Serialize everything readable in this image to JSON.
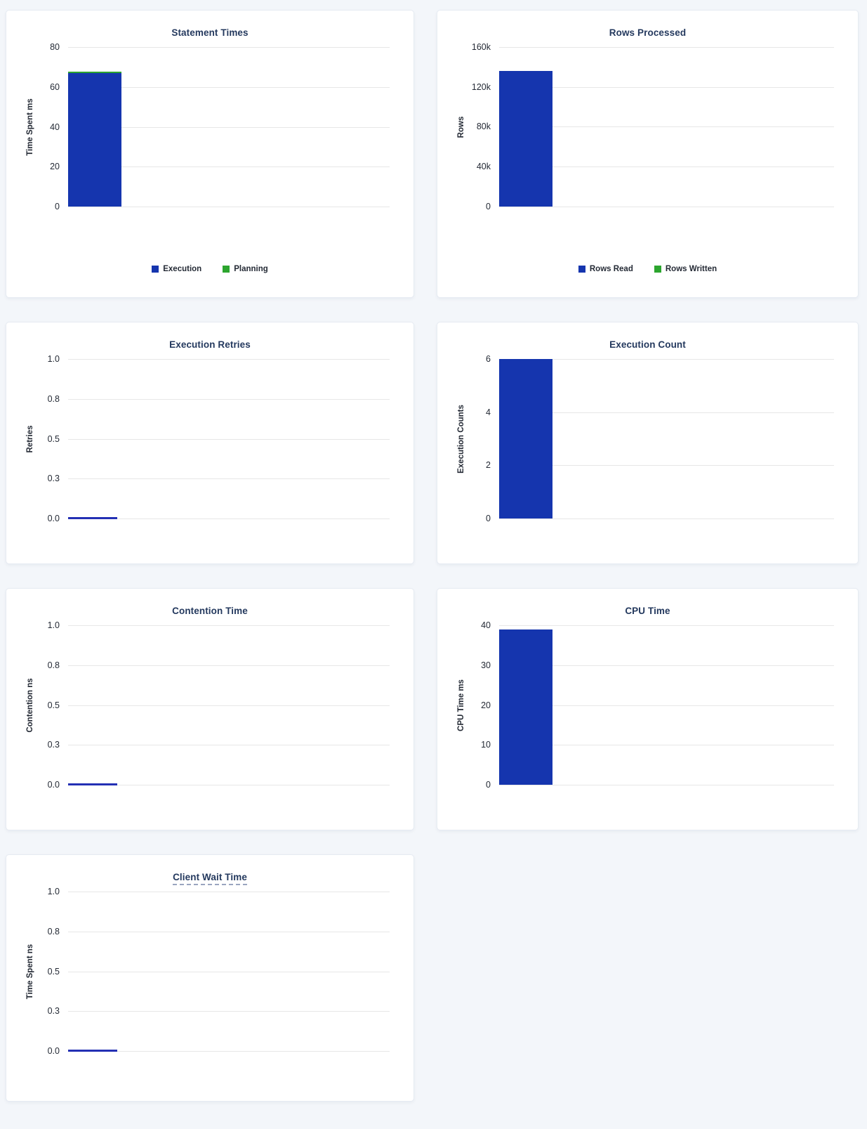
{
  "page": {
    "background": "#F3F6FA",
    "card_background": "#FFFFFF",
    "card_border": "#E6EBF2"
  },
  "colors": {
    "bar_blue": "#1535AE",
    "bar_green": "#2CA52E",
    "zero_bar_blue": "#2430B4",
    "title_navy": "#24395E",
    "tick_text": "#242A35",
    "gridline": "#E7E7E7",
    "tooltip_underline": "#9AA5BF"
  },
  "chart_data": [
    {
      "type": "bar",
      "title": "Statement Times",
      "title_tooltip_underline": false,
      "ylabel": "Time Spent ms",
      "ylim": [
        0,
        80
      ],
      "grid": "on",
      "yticks": [
        {
          "value": 0,
          "label": "0"
        },
        {
          "value": 20,
          "label": "20"
        },
        {
          "value": 40,
          "label": "40"
        },
        {
          "value": 60,
          "label": "60"
        },
        {
          "value": 80,
          "label": "80"
        }
      ],
      "series": [
        {
          "name": "Execution",
          "color": "#1535AE",
          "value": 67
        },
        {
          "name": "Planning",
          "color": "#2CA52E",
          "value": 0.8
        }
      ],
      "legend": true,
      "legend_position": "bottom-center"
    },
    {
      "type": "bar",
      "title": "Rows Processed",
      "title_tooltip_underline": false,
      "ylabel": "Rows",
      "ylim": [
        0,
        160000
      ],
      "grid": "on",
      "yticks": [
        {
          "value": 0,
          "label": "0"
        },
        {
          "value": 40000,
          "label": "40k"
        },
        {
          "value": 80000,
          "label": "80k"
        },
        {
          "value": 120000,
          "label": "120k"
        },
        {
          "value": 160000,
          "label": "160k"
        }
      ],
      "series": [
        {
          "name": "Rows Read",
          "color": "#1535AE",
          "value": 136000
        },
        {
          "name": "Rows Written",
          "color": "#2CA52E",
          "value": 0
        }
      ],
      "legend": true,
      "legend_position": "bottom-center"
    },
    {
      "type": "bar",
      "title": "Execution Retries",
      "title_tooltip_underline": false,
      "ylabel": "Retries",
      "ylim": [
        0,
        1
      ],
      "grid": "on",
      "yticks": [
        {
          "value": 0,
          "label": "0.0"
        },
        {
          "value": 0.25,
          "label": "0.3"
        },
        {
          "value": 0.5,
          "label": "0.5"
        },
        {
          "value": 0.75,
          "label": "0.8"
        },
        {
          "value": 1,
          "label": "1.0"
        }
      ],
      "series": [
        {
          "name": "",
          "color": "#2430B4",
          "value": 0
        }
      ],
      "legend": false,
      "legend_position": "none"
    },
    {
      "type": "bar",
      "title": "Execution Count",
      "title_tooltip_underline": false,
      "ylabel": "Execution Counts",
      "ylim": [
        0,
        6
      ],
      "grid": "on",
      "yticks": [
        {
          "value": 0,
          "label": "0"
        },
        {
          "value": 2,
          "label": "2"
        },
        {
          "value": 4,
          "label": "4"
        },
        {
          "value": 6,
          "label": "6"
        }
      ],
      "series": [
        {
          "name": "",
          "color": "#1535AE",
          "value": 6
        }
      ],
      "legend": false,
      "legend_position": "none"
    },
    {
      "type": "bar",
      "title": "Contention Time",
      "title_tooltip_underline": false,
      "ylabel": "Contention ns",
      "ylim": [
        0,
        1
      ],
      "grid": "on",
      "yticks": [
        {
          "value": 0,
          "label": "0.0"
        },
        {
          "value": 0.25,
          "label": "0.3"
        },
        {
          "value": 0.5,
          "label": "0.5"
        },
        {
          "value": 0.75,
          "label": "0.8"
        },
        {
          "value": 1,
          "label": "1.0"
        }
      ],
      "series": [
        {
          "name": "",
          "color": "#2430B4",
          "value": 0
        }
      ],
      "legend": false,
      "legend_position": "none"
    },
    {
      "type": "bar",
      "title": "CPU Time",
      "title_tooltip_underline": false,
      "ylabel": "CPU Time ms",
      "ylim": [
        0,
        40
      ],
      "grid": "on",
      "yticks": [
        {
          "value": 0,
          "label": "0"
        },
        {
          "value": 10,
          "label": "10"
        },
        {
          "value": 20,
          "label": "20"
        },
        {
          "value": 30,
          "label": "30"
        },
        {
          "value": 40,
          "label": "40"
        }
      ],
      "series": [
        {
          "name": "",
          "color": "#1535AE",
          "value": 39
        }
      ],
      "legend": false,
      "legend_position": "none"
    },
    {
      "type": "bar",
      "title": "Client Wait Time",
      "title_tooltip_underline": true,
      "ylabel": "Time Spent ns",
      "ylim": [
        0,
        1
      ],
      "grid": "on",
      "yticks": [
        {
          "value": 0,
          "label": "0.0"
        },
        {
          "value": 0.25,
          "label": "0.3"
        },
        {
          "value": 0.5,
          "label": "0.5"
        },
        {
          "value": 0.75,
          "label": "0.8"
        },
        {
          "value": 1,
          "label": "1.0"
        }
      ],
      "series": [
        {
          "name": "",
          "color": "#2430B4",
          "value": 0
        }
      ],
      "legend": false,
      "legend_position": "none"
    }
  ]
}
